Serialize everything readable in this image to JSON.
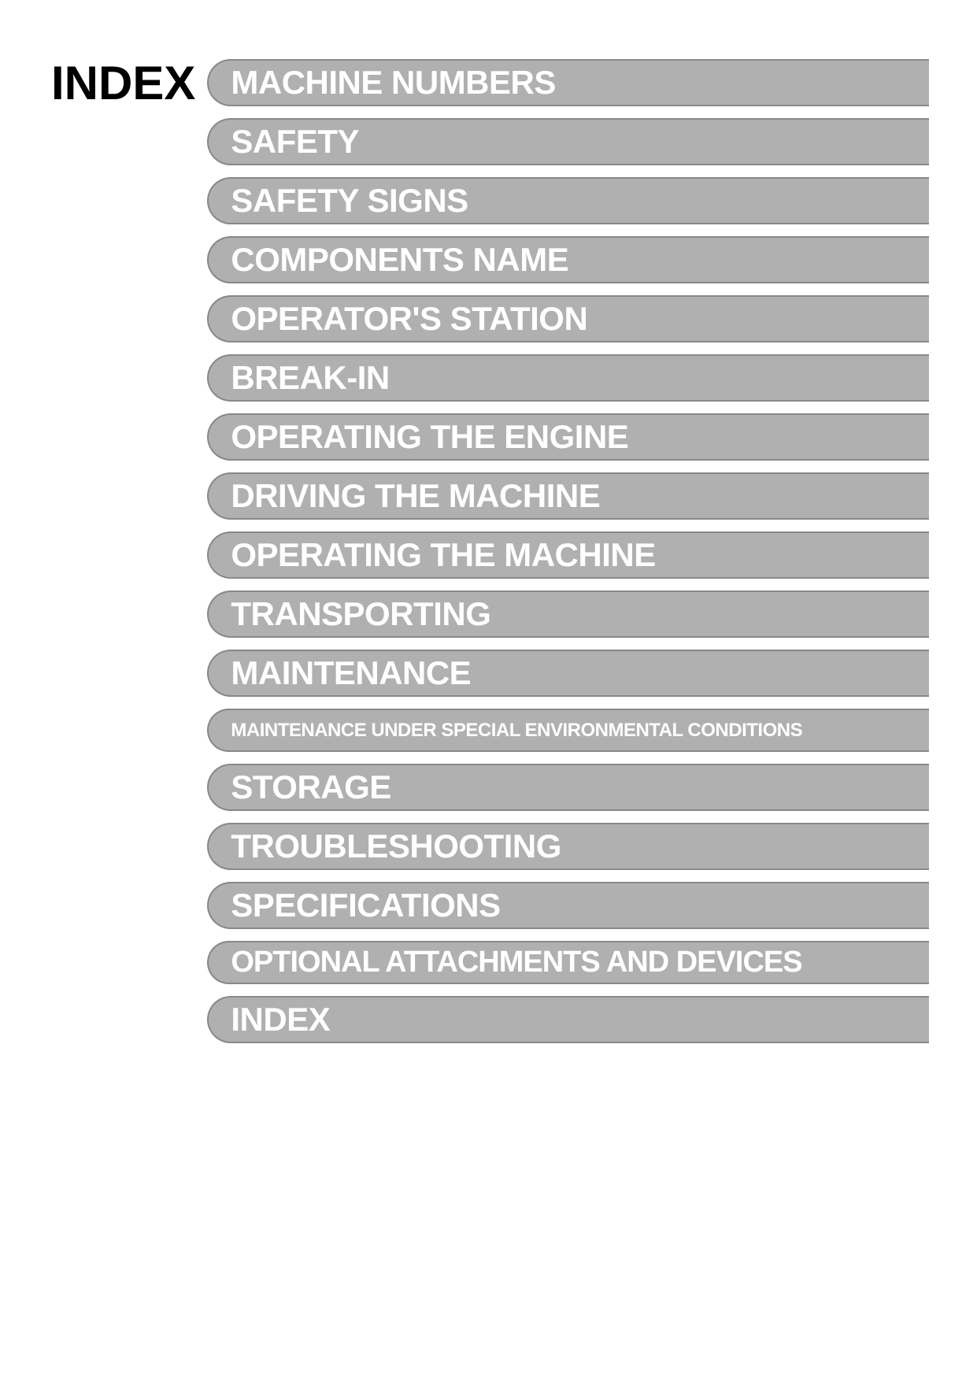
{
  "page": {
    "title": "INDEX",
    "background_color": "#ffffff"
  },
  "tabs": [
    {
      "label": "MACHINE NUMBERS",
      "sizeClass": "tab-sz-normal"
    },
    {
      "label": "SAFETY",
      "sizeClass": "tab-sz-normal"
    },
    {
      "label": "SAFETY SIGNS",
      "sizeClass": "tab-sz-normal"
    },
    {
      "label": "COMPONENTS NAME",
      "sizeClass": "tab-sz-normal"
    },
    {
      "label": "OPERATOR'S STATION",
      "sizeClass": "tab-sz-normal"
    },
    {
      "label": "BREAK-IN",
      "sizeClass": "tab-sz-normal"
    },
    {
      "label": "OPERATING THE ENGINE",
      "sizeClass": "tab-sz-normal"
    },
    {
      "label": "DRIVING THE MACHINE",
      "sizeClass": "tab-sz-normal"
    },
    {
      "label": "OPERATING THE MACHINE",
      "sizeClass": "tab-sz-normal"
    },
    {
      "label": "TRANSPORTING",
      "sizeClass": "tab-sz-normal"
    },
    {
      "label": "MAINTENANCE",
      "sizeClass": "tab-sz-normal"
    },
    {
      "label": "MAINTENANCE UNDER SPECIAL ENVIRONMENTAL CONDITIONS",
      "sizeClass": "tab-sz-small"
    },
    {
      "label": "STORAGE",
      "sizeClass": "tab-sz-normal"
    },
    {
      "label": "TROUBLESHOOTING",
      "sizeClass": "tab-sz-normal"
    },
    {
      "label": "SPECIFICATIONS",
      "sizeClass": "tab-sz-normal"
    },
    {
      "label": "OPTIONAL ATTACHMENTS AND DEVICES",
      "sizeClass": "tab-sz-medium"
    },
    {
      "label": "INDEX",
      "sizeClass": "tab-sz-normal"
    }
  ],
  "style": {
    "tab_bg": "#b0b0b0",
    "tab_border": "#888888",
    "tab_text_color": "#ffffff",
    "title_color": "#000000"
  }
}
